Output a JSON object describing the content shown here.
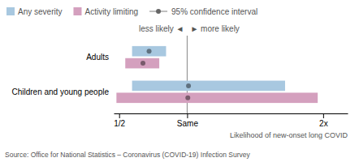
{
  "chart_data": {
    "type": "range",
    "orientation": "horizontal",
    "categories": [
      "Adults",
      "Children and young people"
    ],
    "series": [
      {
        "name": "Any severity",
        "color": "#a8c8e0",
        "values": [
          0.72,
          1.01
        ],
        "low": [
          0.595,
          0.595
        ],
        "high": [
          0.845,
          1.72
        ]
      },
      {
        "name": "Activity limiting",
        "color": "#d4a0be",
        "values": [
          0.675,
          1.005
        ],
        "low": [
          0.545,
          0.48
        ],
        "high": [
          0.795,
          1.96
        ]
      }
    ],
    "xlim": [
      0.46,
      2.18
    ],
    "xticks": [
      {
        "value": 0.5,
        "label": "1/2"
      },
      {
        "value": 1.0,
        "label": "Same"
      },
      {
        "value": 2.0,
        "label": "2x"
      }
    ],
    "xlabel": "Likelihood of new-onset long COVID",
    "reference_line": 1.0,
    "annotations": [
      "less likely ◄",
      "► more likely"
    ],
    "ci_legend": "95% confidence interval",
    "source": "Source: Office for National Statistics – Coronavirus (COVID-19) Infection Survey",
    "legend": "top",
    "grid": false
  }
}
